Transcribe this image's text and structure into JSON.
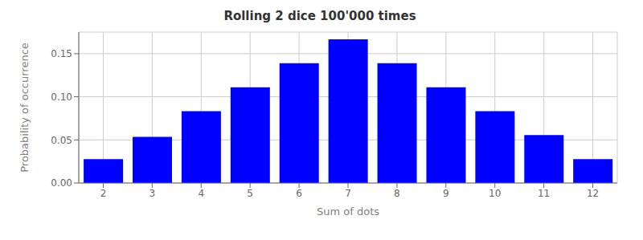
{
  "chart_data": {
    "type": "bar",
    "title": "Rolling 2 dice 100'000 times",
    "xlabel": "Sum of dots",
    "ylabel": "Probability of occurrence",
    "categories": [
      2,
      3,
      4,
      5,
      6,
      7,
      8,
      9,
      10,
      11,
      12
    ],
    "values": [
      0.0277,
      0.0536,
      0.0833,
      0.1111,
      0.1389,
      0.1667,
      0.1389,
      0.1111,
      0.0833,
      0.0556,
      0.0277
    ],
    "color": "#0000FF",
    "ylim": [
      0,
      0.175
    ],
    "yticks": [
      {
        "value": 0,
        "label": "0.00"
      },
      {
        "value": 0.05,
        "label": "0.05"
      },
      {
        "value": 0.1,
        "label": "0.10"
      },
      {
        "value": 0.15,
        "label": "0.15"
      }
    ],
    "grid": true
  }
}
